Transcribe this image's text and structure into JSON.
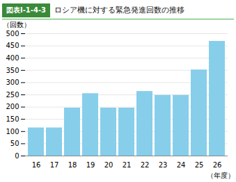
{
  "chart_data": {
    "type": "bar",
    "title": "ロシア機に対する緊急発進回数の推移",
    "annotations": [
      "図表Ⅰ-1-4-3"
    ],
    "categories": [
      "16",
      "17",
      "18",
      "19",
      "20",
      "21",
      "22",
      "23",
      "24",
      "25",
      "26"
    ],
    "values": [
      115,
      115,
      196,
      255,
      196,
      196,
      264,
      248,
      248,
      352,
      469
    ],
    "color": "#87CEEB",
    "ylabel": "（回数）",
    "xlabel": "（年度）",
    "ylim": [
      0,
      500
    ],
    "yticks": [
      0,
      50,
      100,
      150,
      200,
      250,
      300,
      350,
      400,
      450,
      500
    ],
    "grid": true
  }
}
